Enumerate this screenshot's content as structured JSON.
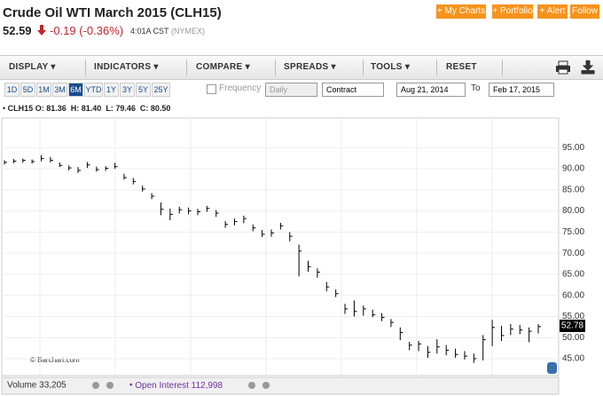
{
  "header": {
    "title": "Crude Oil WTI March 2015 (CLH15)",
    "price": "52.59",
    "change": "-0.19 (-0.36%)",
    "time": "4:01A CST",
    "exchange": "(NYMEX)",
    "buttons": [
      "+ My Charts",
      "+ Portfolio",
      "+ Alert",
      "Follow"
    ]
  },
  "menu": [
    "DISPLAY",
    "INDICATORS",
    "COMPARE",
    "SPREADS",
    "TOOLS",
    "RESET"
  ],
  "periods": [
    "1D",
    "5D",
    "1M",
    "3M",
    "6M",
    "YTD",
    "1Y",
    "3Y",
    "5Y",
    "25Y"
  ],
  "controls": {
    "frequency_label": "Frequency",
    "frequency": "Daily",
    "contract": "Contract",
    "from": "Aug 21, 2014",
    "to_label": "To",
    "to": "Feb 17, 2015"
  },
  "ohlc_line": {
    "symbol": "CLH15",
    "open_label": "O:",
    "open": "81.36",
    "high_label": "H:",
    "high": "81.40",
    "low_label": "L:",
    "low": "79.46",
    "close_label": "C:",
    "close": "80.50"
  },
  "chart": {
    "type": "ohlc",
    "watermark": "© Barchart.com",
    "color": "#000000",
    "ylim": [
      41,
      102
    ],
    "yticks": [
      {
        "value": 45,
        "label": "45.00"
      },
      {
        "value": 50,
        "label": "50.00"
      },
      {
        "value": 55,
        "label": "55.00"
      },
      {
        "value": 60,
        "label": "60.00"
      },
      {
        "value": 65,
        "label": "65.00"
      },
      {
        "value": 70,
        "label": "70.00"
      },
      {
        "value": 75,
        "label": "75.00"
      },
      {
        "value": 80,
        "label": "80.00"
      },
      {
        "value": 85,
        "label": "85.00"
      },
      {
        "value": 90,
        "label": "90.00"
      },
      {
        "value": 95,
        "label": "95.00"
      }
    ],
    "last": 52.78,
    "close": [
      91.5,
      91.8,
      92.0,
      91.7,
      92.4,
      92.0,
      90.8,
      90.2,
      89.6,
      90.9,
      89.8,
      90.1,
      90.5,
      87.9,
      87.0,
      85.2,
      83.5,
      80.4,
      79.2,
      80.3,
      80.0,
      79.8,
      80.6,
      79.5,
      76.8,
      77.5,
      78.2,
      76.0,
      74.5,
      74.8,
      76.5,
      74.0,
      70.5,
      66.8,
      65.5,
      62.0,
      60.4,
      56.8,
      56.2,
      56.8,
      55.4,
      54.8,
      53.6,
      51.2,
      48.2,
      48.5,
      46.5,
      47.8,
      47.0,
      46.0,
      45.6,
      45.0,
      49.5,
      52.4,
      50.5,
      52.0,
      51.8,
      51.5,
      52.6
    ],
    "high": [
      92.0,
      92.3,
      92.4,
      92.2,
      93.2,
      92.8,
      91.5,
      90.8,
      90.4,
      91.6,
      90.5,
      90.6,
      91.4,
      88.8,
      87.8,
      86.0,
      84.2,
      82.0,
      80.6,
      81.0,
      80.8,
      80.5,
      81.2,
      80.2,
      77.6,
      78.2,
      78.9,
      76.8,
      75.5,
      75.6,
      77.2,
      75.0,
      72.0,
      68.2,
      66.4,
      63.2,
      61.4,
      58.0,
      58.8,
      57.6,
      56.6,
      55.8,
      54.4,
      52.4,
      49.0,
      49.2,
      48.0,
      49.6,
      48.2,
      47.4,
      46.8,
      46.2,
      50.6,
      54.2,
      52.8,
      53.2,
      53.0,
      52.4,
      53.2
    ],
    "low": [
      91.0,
      91.3,
      91.4,
      91.2,
      91.8,
      91.5,
      90.4,
      89.6,
      89.0,
      90.2,
      89.3,
      89.5,
      90.0,
      87.4,
      86.3,
      84.6,
      82.8,
      79.0,
      77.8,
      79.4,
      79.2,
      79.0,
      79.8,
      78.6,
      76.0,
      76.6,
      77.1,
      75.2,
      73.8,
      73.9,
      75.6,
      72.8,
      64.5,
      65.6,
      64.2,
      61.0,
      59.6,
      55.6,
      55.0,
      55.2,
      54.8,
      53.9,
      52.5,
      49.4,
      47.0,
      46.8,
      45.2,
      46.2,
      45.8,
      45.2,
      44.8,
      44.0,
      44.6,
      48.0,
      49.2,
      50.6,
      50.8,
      48.9,
      51.0
    ]
  },
  "footer": {
    "volume": "Volume 33,205",
    "open_interest": "Open Interest 112,998"
  }
}
